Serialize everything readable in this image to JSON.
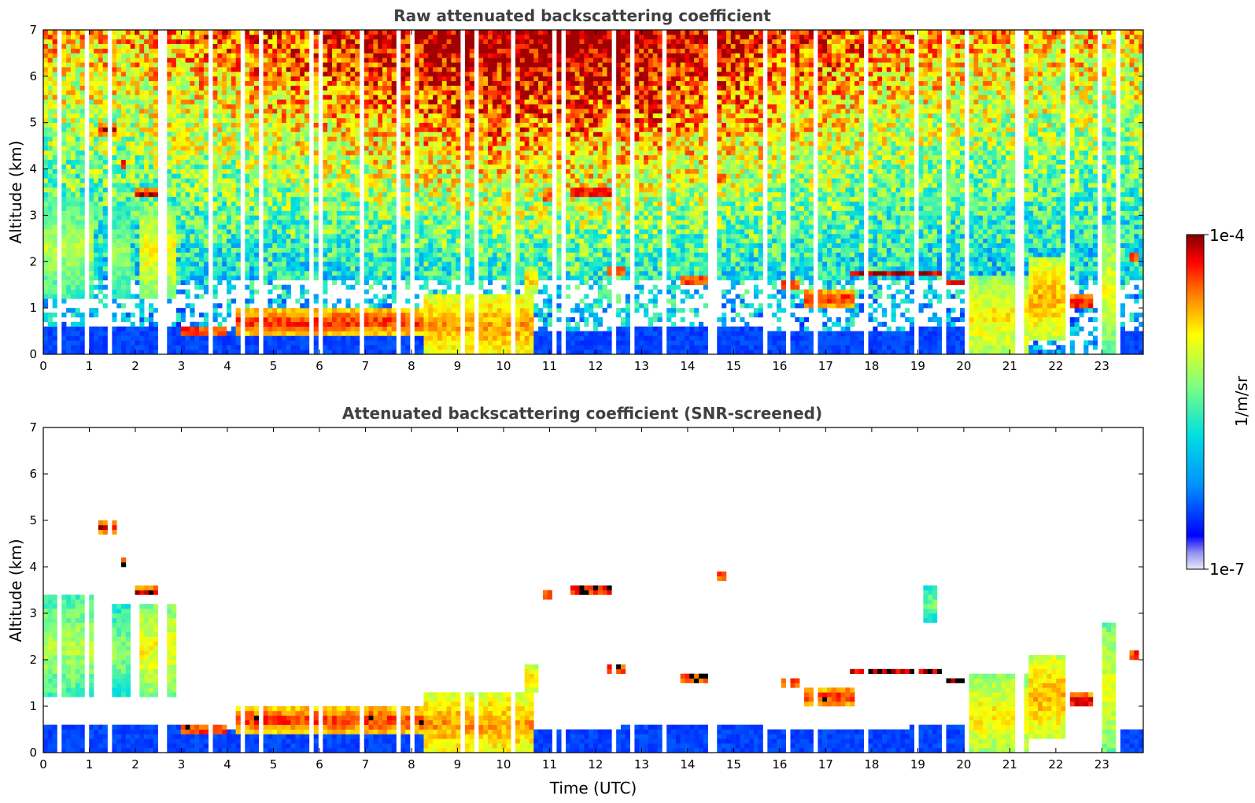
{
  "colors": {
    "accent": "#0000ff",
    "colormap": [
      "#e8e8f8",
      "#0000ff",
      "#0090ff",
      "#00e0e0",
      "#80ff80",
      "#ffff00",
      "#ff8000",
      "#ff0000",
      "#800000"
    ]
  },
  "chart_data": [
    {
      "type": "heatmap",
      "title": "Raw attenuated backscattering coefficient",
      "xlabel": "",
      "ylabel": "Altitude (km)",
      "xlim": [
        0,
        23.9
      ],
      "ylim": [
        0,
        7
      ],
      "x_ticks": [
        0,
        1,
        2,
        3,
        4,
        5,
        6,
        7,
        8,
        9,
        10,
        11,
        12,
        13,
        14,
        15,
        16,
        17,
        18,
        19,
        20,
        21,
        22,
        23
      ],
      "y_ticks": [
        0,
        1,
        2,
        3,
        4,
        5,
        6,
        7
      ],
      "grid": false,
      "features": [
        {
          "t": [
            0,
            1.1
          ],
          "z": [
            1.4,
            3.9
          ],
          "level": "green-orange"
        },
        {
          "t": [
            8.3,
            10.7
          ],
          "z": [
            0,
            1.4
          ],
          "level": "orange-red"
        },
        {
          "t": [
            20,
            23.4
          ],
          "z": [
            0,
            2.2
          ],
          "level": "yellow-orange"
        },
        {
          "t": [
            17.5,
            19.5
          ],
          "z": [
            1.5,
            1.9
          ],
          "level": "dark-red"
        }
      ]
    },
    {
      "type": "heatmap",
      "title": "Attenuated backscattering coefficient (SNR-screened)",
      "xlabel": "Time (UTC)",
      "ylabel": "Altitude (km)",
      "xlim": [
        0,
        23.9
      ],
      "ylim": [
        0,
        7
      ],
      "x_ticks": [
        0,
        1,
        2,
        3,
        4,
        5,
        6,
        7,
        8,
        9,
        10,
        11,
        12,
        13,
        14,
        15,
        16,
        17,
        18,
        19,
        20,
        21,
        22,
        23
      ],
      "y_ticks": [
        0,
        1,
        2,
        3,
        4,
        5,
        6,
        7
      ],
      "grid": false,
      "features": [
        {
          "t": [
            0,
            1.1
          ],
          "z": [
            1.4,
            3.9
          ],
          "level": "green-orange"
        },
        {
          "t": [
            8.3,
            10.7
          ],
          "z": [
            0,
            1.4
          ],
          "level": "orange-red"
        },
        {
          "t": [
            20,
            23.4
          ],
          "z": [
            0,
            2.2
          ],
          "level": "yellow-orange"
        }
      ]
    }
  ],
  "colorbar": {
    "label": "1/m/sr",
    "min_label": "1e-7",
    "max_label": "1e-4",
    "scale": "log"
  }
}
